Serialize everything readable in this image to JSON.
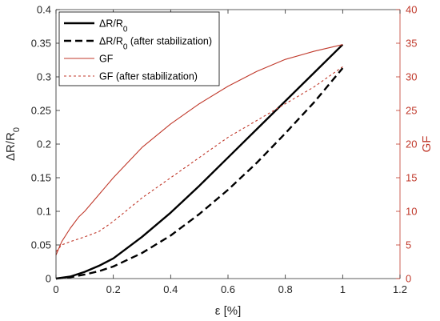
{
  "chart_data": {
    "type": "line",
    "title": "",
    "x_axis": {
      "label": "ε [%]",
      "range": [
        0,
        1.2
      ],
      "ticks": [
        "0",
        "0.2",
        "0.4",
        "0.6",
        "0.8",
        "1",
        "1.2"
      ]
    },
    "y_axis_left": {
      "label": "ΔR/R",
      "label_subscript": "0",
      "range": [
        0,
        0.4
      ],
      "ticks": [
        "0",
        "0.05",
        "0.1",
        "0.15",
        "0.2",
        "0.25",
        "0.3",
        "0.35",
        "0.4"
      ],
      "color": "#000000"
    },
    "y_axis_right": {
      "label": "GF",
      "range": [
        0,
        40
      ],
      "ticks": [
        "0",
        "5",
        "10",
        "15",
        "20",
        "25",
        "30",
        "35",
        "40"
      ],
      "color": "#c0392b"
    },
    "grid": false,
    "legend_position": "top-left",
    "series": [
      {
        "name": "ΔR/R",
        "name_subscript": "0",
        "axis": "left",
        "color": "#000000",
        "style": "solid",
        "x": [
          0,
          0.05,
          0.1,
          0.15,
          0.2,
          0.3,
          0.4,
          0.5,
          0.6,
          0.7,
          0.8,
          0.9,
          1.0
        ],
        "y": [
          0,
          0.003,
          0.01,
          0.019,
          0.03,
          0.062,
          0.098,
          0.138,
          0.18,
          0.222,
          0.264,
          0.306,
          0.348
        ]
      },
      {
        "name": "ΔR/R",
        "name_subscript": "0",
        "name_suffix": " (after stabilization)",
        "axis": "left",
        "color": "#000000",
        "style": "dashed",
        "x": [
          0,
          0.05,
          0.1,
          0.15,
          0.2,
          0.3,
          0.4,
          0.5,
          0.6,
          0.7,
          0.8,
          0.9,
          1.0
        ],
        "y": [
          0,
          0.002,
          0.006,
          0.011,
          0.018,
          0.038,
          0.064,
          0.096,
          0.132,
          0.172,
          0.216,
          0.262,
          0.313
        ]
      },
      {
        "name": "GF",
        "axis": "right",
        "color": "#c0392b",
        "style": "solid",
        "x": [
          0,
          0.02,
          0.05,
          0.08,
          0.1,
          0.15,
          0.2,
          0.3,
          0.4,
          0.5,
          0.6,
          0.7,
          0.8,
          0.9,
          1.0
        ],
        "y": [
          3.5,
          5.5,
          7.5,
          9.2,
          10,
          12.5,
          15,
          19.5,
          23,
          26,
          28.6,
          30.8,
          32.6,
          33.8,
          34.8
        ]
      },
      {
        "name": "GF (after stabilization)",
        "axis": "right",
        "color": "#c0392b",
        "style": "dotted",
        "x": [
          0,
          0.02,
          0.05,
          0.1,
          0.15,
          0.2,
          0.3,
          0.4,
          0.5,
          0.6,
          0.7,
          0.8,
          0.9,
          1.0
        ],
        "y": [
          4,
          5,
          5.5,
          6.2,
          7,
          8.5,
          12,
          15,
          18,
          21,
          23.5,
          26,
          28.5,
          31.5
        ]
      }
    ]
  }
}
